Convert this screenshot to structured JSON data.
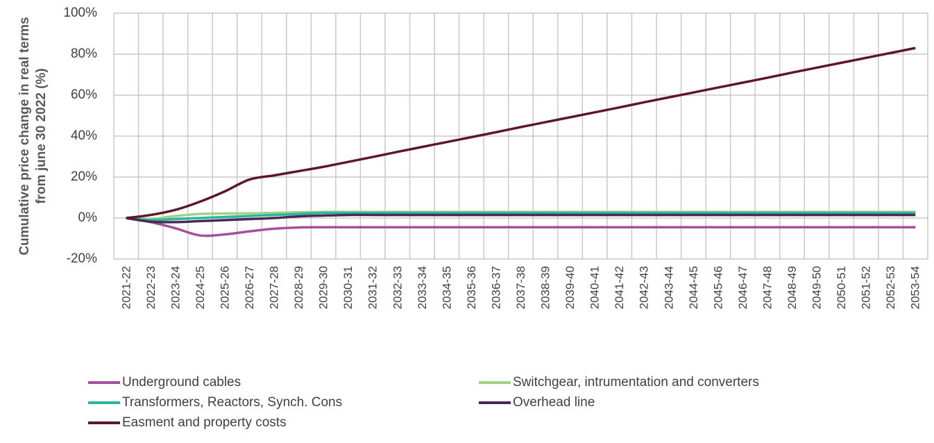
{
  "chart_data": {
    "type": "line",
    "y_label": [
      "Cumulative price change in real terms",
      "from june 30 2022 (%)"
    ],
    "categories": [
      "2021-22",
      "2022-23",
      "2023-24",
      "2024-25",
      "2025-26",
      "2026-27",
      "2027-28",
      "2028-29",
      "2029-30",
      "2030-31",
      "2031-32",
      "2032-33",
      "2033-34",
      "2034-35",
      "2035-36",
      "2036-37",
      "2037-38",
      "2038-39",
      "2039-40",
      "2040-41",
      "2041-42",
      "2042-43",
      "2043-44",
      "2044-45",
      "2045-46",
      "2046-47",
      "2047-48",
      "2048-49",
      "2049-50",
      "2050-51",
      "2051-52",
      "2052-53",
      "2053-54"
    ],
    "series": [
      {
        "name": "Underground cables",
        "color": "#a64f9f",
        "values": [
          0,
          -2,
          -5,
          -8.5,
          -8,
          -6.5,
          -5.2,
          -4.6,
          -4.5,
          -4.5,
          -4.5,
          -4.5,
          -4.5,
          -4.5,
          -4.5,
          -4.5,
          -4.5,
          -4.5,
          -4.5,
          -4.5,
          -4.5,
          -4.5,
          -4.5,
          -4.5,
          -4.5,
          -4.5,
          -4.5,
          -4.5,
          -4.5,
          -4.5,
          -4.5,
          -4.5,
          -4.5
        ]
      },
      {
        "name": "Switchgear, intrumentation and converters",
        "color": "#9ed388",
        "values": [
          0,
          -0.5,
          1,
          2,
          2.2,
          2.3,
          2.5,
          2.8,
          3,
          3,
          3,
          3,
          3,
          3,
          3,
          3,
          3,
          3,
          3,
          3,
          3,
          3,
          3,
          3,
          3,
          3,
          3,
          3,
          3,
          3,
          3,
          3,
          3
        ]
      },
      {
        "name": "Transformers, Reactors, Synch. Cons",
        "color": "#2bb59e",
        "values": [
          0,
          -1,
          -0.5,
          0,
          0.5,
          1,
          1.5,
          2,
          2.5,
          2.5,
          2.5,
          2.5,
          2.5,
          2.5,
          2.5,
          2.5,
          2.5,
          2.5,
          2.5,
          2.5,
          2.5,
          2.5,
          2.5,
          2.5,
          2.5,
          2.5,
          2.5,
          2.5,
          2.5,
          2.5,
          2.5,
          2.5,
          2.5
        ]
      },
      {
        "name": "Overhead line",
        "color": "#4a2756",
        "values": [
          0,
          -1.8,
          -2,
          -1.5,
          -1,
          -0.5,
          0,
          0.8,
          1.2,
          1.5,
          1.5,
          1.5,
          1.5,
          1.5,
          1.5,
          1.5,
          1.5,
          1.5,
          1.5,
          1.5,
          1.5,
          1.5,
          1.5,
          1.5,
          1.5,
          1.5,
          1.5,
          1.5,
          1.5,
          1.5,
          1.5,
          1.5,
          1.5
        ]
      },
      {
        "name": "Easment and property costs",
        "color": "#5c1826",
        "values": [
          0,
          1.5,
          4,
          8,
          13,
          18.8,
          20.8,
          22.9,
          25,
          27.4,
          29.8,
          32.3,
          34.7,
          37.1,
          39.5,
          41.9,
          44.4,
          46.8,
          49.2,
          51.6,
          54,
          56.5,
          58.9,
          61.3,
          63.7,
          66.1,
          68.5,
          71,
          73.4,
          75.8,
          78.2,
          80.6,
          83
        ]
      }
    ],
    "ylim": [
      -20,
      100
    ],
    "yticks": [
      {
        "value": -20,
        "label": "-20%"
      },
      {
        "value": 0,
        "label": "0%"
      },
      {
        "value": 20,
        "label": "20%"
      },
      {
        "value": 40,
        "label": "40%"
      },
      {
        "value": 60,
        "label": "60%"
      },
      {
        "value": 80,
        "label": "80%"
      },
      {
        "value": 100,
        "label": "100%"
      }
    ],
    "grid": true,
    "legend": "bottom"
  }
}
